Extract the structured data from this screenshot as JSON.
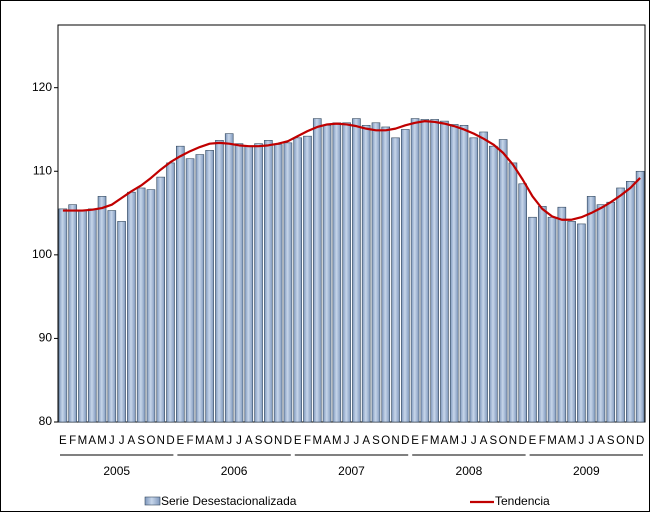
{
  "chart_data": {
    "type": "bar",
    "categories": [
      "E",
      "F",
      "M",
      "A",
      "M",
      "J",
      "J",
      "A",
      "S",
      "O",
      "N",
      "D",
      "E",
      "F",
      "M",
      "A",
      "M",
      "J",
      "J",
      "A",
      "S",
      "O",
      "N",
      "D",
      "E",
      "F",
      "M",
      "A",
      "M",
      "J",
      "J",
      "A",
      "S",
      "O",
      "N",
      "D",
      "E",
      "F",
      "M",
      "A",
      "M",
      "J",
      "J",
      "A",
      "S",
      "O",
      "N",
      "D",
      "E",
      "F",
      "M",
      "A",
      "M",
      "J",
      "J",
      "A",
      "S",
      "O",
      "N",
      "D"
    ],
    "year_groups": [
      "2005",
      "2006",
      "2007",
      "2008",
      "2009"
    ],
    "series": [
      {
        "name": "Serie Desestacionalizada",
        "type": "bar",
        "color": "#95b3d7",
        "values": [
          105.5,
          106,
          105.3,
          105.5,
          107,
          105.3,
          104,
          107.5,
          108,
          107.8,
          109.3,
          111,
          113,
          111.5,
          112,
          112.5,
          113.7,
          114.5,
          113.3,
          113,
          113.3,
          113.7,
          113.2,
          113.4,
          114,
          114.2,
          116.3,
          115.5,
          115.8,
          115.8,
          116.3,
          115.5,
          115.8,
          115.3,
          114,
          115,
          116.3,
          116.2,
          116.2,
          116,
          115.6,
          115.5,
          114,
          114.7,
          113,
          113.8,
          111,
          108.5,
          104.5,
          105.8,
          104.5,
          105.7,
          104,
          103.7,
          107,
          106,
          106.3,
          108,
          108.8,
          110
        ]
      },
      {
        "name": "Tendencia",
        "type": "line",
        "color": "#c00000",
        "values": [
          105.3,
          105.3,
          105.3,
          105.4,
          105.6,
          106,
          106.8,
          107.6,
          108.3,
          109.2,
          110.2,
          111.1,
          111.8,
          112.4,
          112.9,
          113.3,
          113.4,
          113.3,
          113.1,
          113,
          113,
          113.1,
          113.3,
          113.6,
          114.2,
          114.8,
          115.3,
          115.6,
          115.7,
          115.6,
          115.4,
          115.1,
          114.9,
          114.9,
          115.1,
          115.5,
          115.8,
          116,
          115.9,
          115.7,
          115.4,
          115,
          114.5,
          113.9,
          113.2,
          112.2,
          110.8,
          109,
          107,
          105.5,
          104.6,
          104.2,
          104.2,
          104.5,
          105,
          105.6,
          106.3,
          107.1,
          108,
          109.2
        ]
      }
    ],
    "ylim": [
      80,
      127.5
    ],
    "yticks": [
      80,
      90,
      100,
      110,
      120
    ],
    "grid": false,
    "legend": "bottom"
  }
}
